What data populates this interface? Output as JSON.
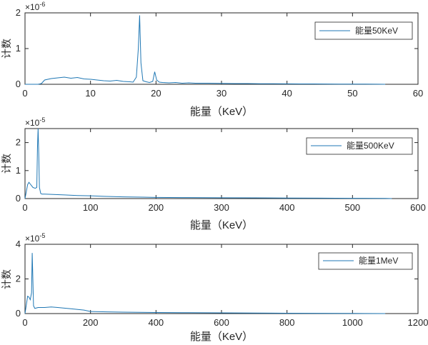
{
  "figure": {
    "background": "#ffffff",
    "axis_color": "#262626",
    "line_color": "#1f77b4"
  },
  "chart_data": [
    {
      "type": "line",
      "title": "",
      "xlabel": "能量（KeV）",
      "ylabel": "计数",
      "xlim": [
        0,
        60
      ],
      "ylim": [
        0,
        2.0
      ],
      "y_exponent_label": "×10",
      "y_exponent_power": "-6",
      "xticks": [
        "0",
        "10",
        "20",
        "30",
        "40",
        "50",
        "60"
      ],
      "yticks": [
        "0",
        "1",
        "2"
      ],
      "legend": "top-right",
      "grid": false,
      "series": [
        {
          "name": "能量50KeV",
          "x": [
            0,
            1,
            2,
            2.5,
            3,
            4,
            5,
            6,
            7,
            8,
            9,
            10,
            11,
            12,
            13,
            14,
            15,
            16,
            16.5,
            17,
            17.3,
            17.5,
            17.7,
            18,
            18.5,
            19,
            19.5,
            19.8,
            20.1,
            20.5,
            21,
            22,
            23,
            24,
            25,
            26,
            28,
            30,
            32,
            34,
            36,
            38,
            40,
            42,
            44,
            46,
            48,
            50,
            52,
            54,
            55
          ],
          "y": [
            0,
            0,
            0,
            0.02,
            0.12,
            0.16,
            0.18,
            0.2,
            0.17,
            0.19,
            0.15,
            0.14,
            0.12,
            0.1,
            0.09,
            0.11,
            0.08,
            0.07,
            0.06,
            0.2,
            1.0,
            1.93,
            0.6,
            0.1,
            0.07,
            0.05,
            0.08,
            0.35,
            0.12,
            0.06,
            0.05,
            0.04,
            0.05,
            0.03,
            0.04,
            0.03,
            0.03,
            0.025,
            0.02,
            0.02,
            0.015,
            0.015,
            0.012,
            0.01,
            0.01,
            0.008,
            0.006,
            0.005,
            0.004,
            0.003,
            0
          ]
        }
      ]
    },
    {
      "type": "line",
      "title": "",
      "xlabel": "能量（KeV）",
      "ylabel": "计数",
      "xlim": [
        0,
        600
      ],
      "ylim": [
        0,
        2.5
      ],
      "y_exponent_label": "×10",
      "y_exponent_power": "-5",
      "xticks": [
        "0",
        "100",
        "200",
        "300",
        "400",
        "500",
        "600"
      ],
      "yticks": [
        "0",
        "1",
        "2"
      ],
      "legend": "top-right",
      "grid": false,
      "series": [
        {
          "name": "能量500KeV",
          "x": [
            0,
            2,
            4,
            6,
            8,
            10,
            12,
            14,
            16,
            18,
            19,
            20,
            21,
            22,
            24,
            26,
            30,
            40,
            60,
            80,
            100,
            120,
            150,
            180,
            200,
            250,
            300,
            350,
            400,
            450,
            500,
            550,
            560
          ],
          "y": [
            0,
            0.25,
            0.5,
            0.58,
            0.52,
            0.46,
            0.4,
            0.38,
            0.37,
            0.4,
            1.8,
            2.5,
            1.6,
            0.4,
            0.18,
            0.16,
            0.16,
            0.15,
            0.13,
            0.11,
            0.1,
            0.08,
            0.06,
            0.05,
            0.04,
            0.035,
            0.03,
            0.025,
            0.02,
            0.015,
            0.01,
            0.006,
            0
          ]
        }
      ]
    },
    {
      "type": "line",
      "title": "",
      "xlabel": "能量（KeV）",
      "ylabel": "计数",
      "xlim": [
        0,
        1200
      ],
      "ylim": [
        0,
        4.0
      ],
      "y_exponent_label": "×10",
      "y_exponent_power": "-5",
      "xticks": [
        "0",
        "200",
        "400",
        "600",
        "800",
        "1000",
        "1200"
      ],
      "yticks": [
        "0",
        "2",
        "4"
      ],
      "legend": "top-right",
      "grid": false,
      "series": [
        {
          "name": "能量1MeV",
          "x": [
            0,
            4,
            8,
            12,
            16,
            20,
            22,
            24,
            26,
            30,
            40,
            60,
            80,
            100,
            140,
            180,
            200,
            250,
            300,
            400,
            500,
            600,
            700,
            800,
            900,
            1000,
            1100
          ],
          "y": [
            0,
            0.5,
            1.0,
            0.95,
            0.8,
            1.2,
            3.5,
            2.0,
            0.45,
            0.3,
            0.35,
            0.35,
            0.38,
            0.35,
            0.28,
            0.2,
            0.12,
            0.1,
            0.08,
            0.06,
            0.05,
            0.04,
            0.03,
            0.02,
            0.015,
            0.01,
            0
          ]
        }
      ]
    }
  ]
}
